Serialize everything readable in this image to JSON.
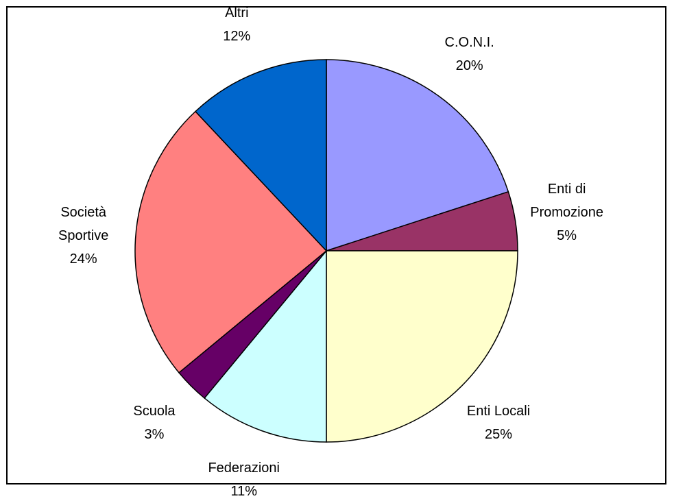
{
  "chart_data": {
    "type": "pie",
    "categories": [
      "C.O.N.I.",
      "Enti di Promozione",
      "Enti Locali",
      "Federazioni",
      "Scuola",
      "Società Sportive",
      "Altri"
    ],
    "values": [
      20,
      5,
      25,
      11,
      3,
      24,
      12
    ],
    "value_labels": [
      "20%",
      "5%",
      "25%",
      "11%",
      "3%",
      "24%",
      "12%"
    ],
    "colors": [
      "#9999ff",
      "#993366",
      "#ffffcc",
      "#ccffff",
      "#660066",
      "#ff8080",
      "#0066cc"
    ]
  }
}
